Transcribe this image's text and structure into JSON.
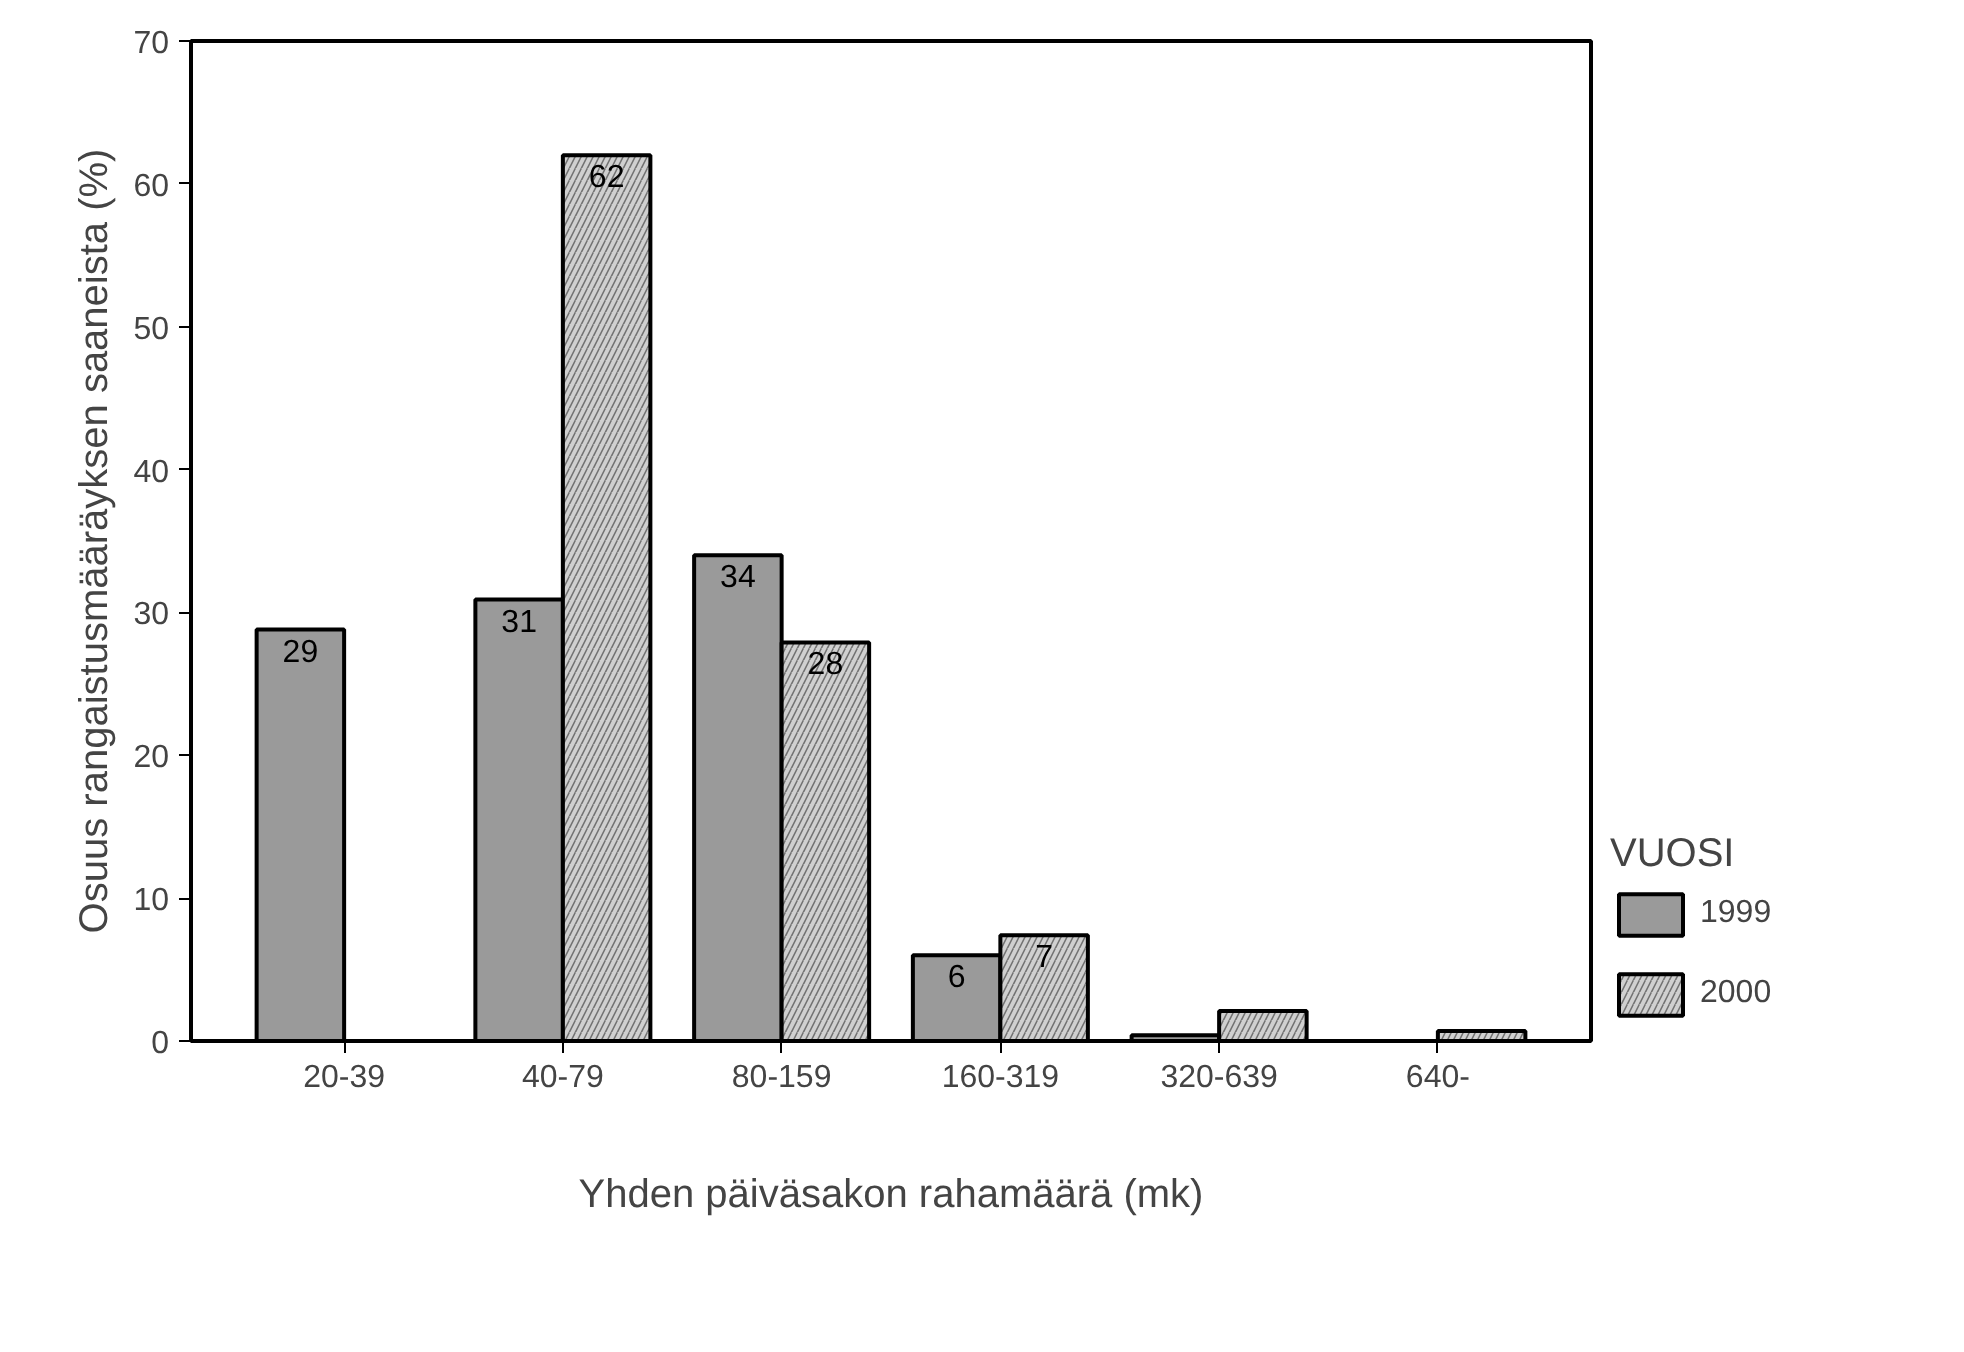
{
  "chart_data": {
    "type": "bar",
    "xlabel": "Yhden päiväsakon rahamäärä (mk)",
    "ylabel": "Osuus rangaistusmääräyksen saaneista (%)",
    "legend_title": "VUOSI",
    "categories": [
      "20-39",
      "40-79",
      "80-159",
      "160-319",
      "320-639",
      "640-"
    ],
    "series": [
      {
        "name": "1999",
        "color": "#9a9a9a",
        "values": [
          28.8,
          30.9,
          34.0,
          6.0,
          0.4,
          null
        ],
        "value_labels": [
          "29",
          "31",
          "34",
          "6",
          null,
          null
        ]
      },
      {
        "name": "2000",
        "color": "#d0d0d0",
        "values": [
          null,
          62.0,
          27.9,
          7.4,
          2.1,
          0.7
        ],
        "value_labels": [
          null,
          "62",
          "28",
          "7",
          null,
          null
        ]
      }
    ],
    "ylim": [
      0,
      70
    ],
    "yticks": [
      0,
      10,
      20,
      30,
      40,
      50,
      60,
      70
    ],
    "grid": false,
    "legend": "right"
  }
}
